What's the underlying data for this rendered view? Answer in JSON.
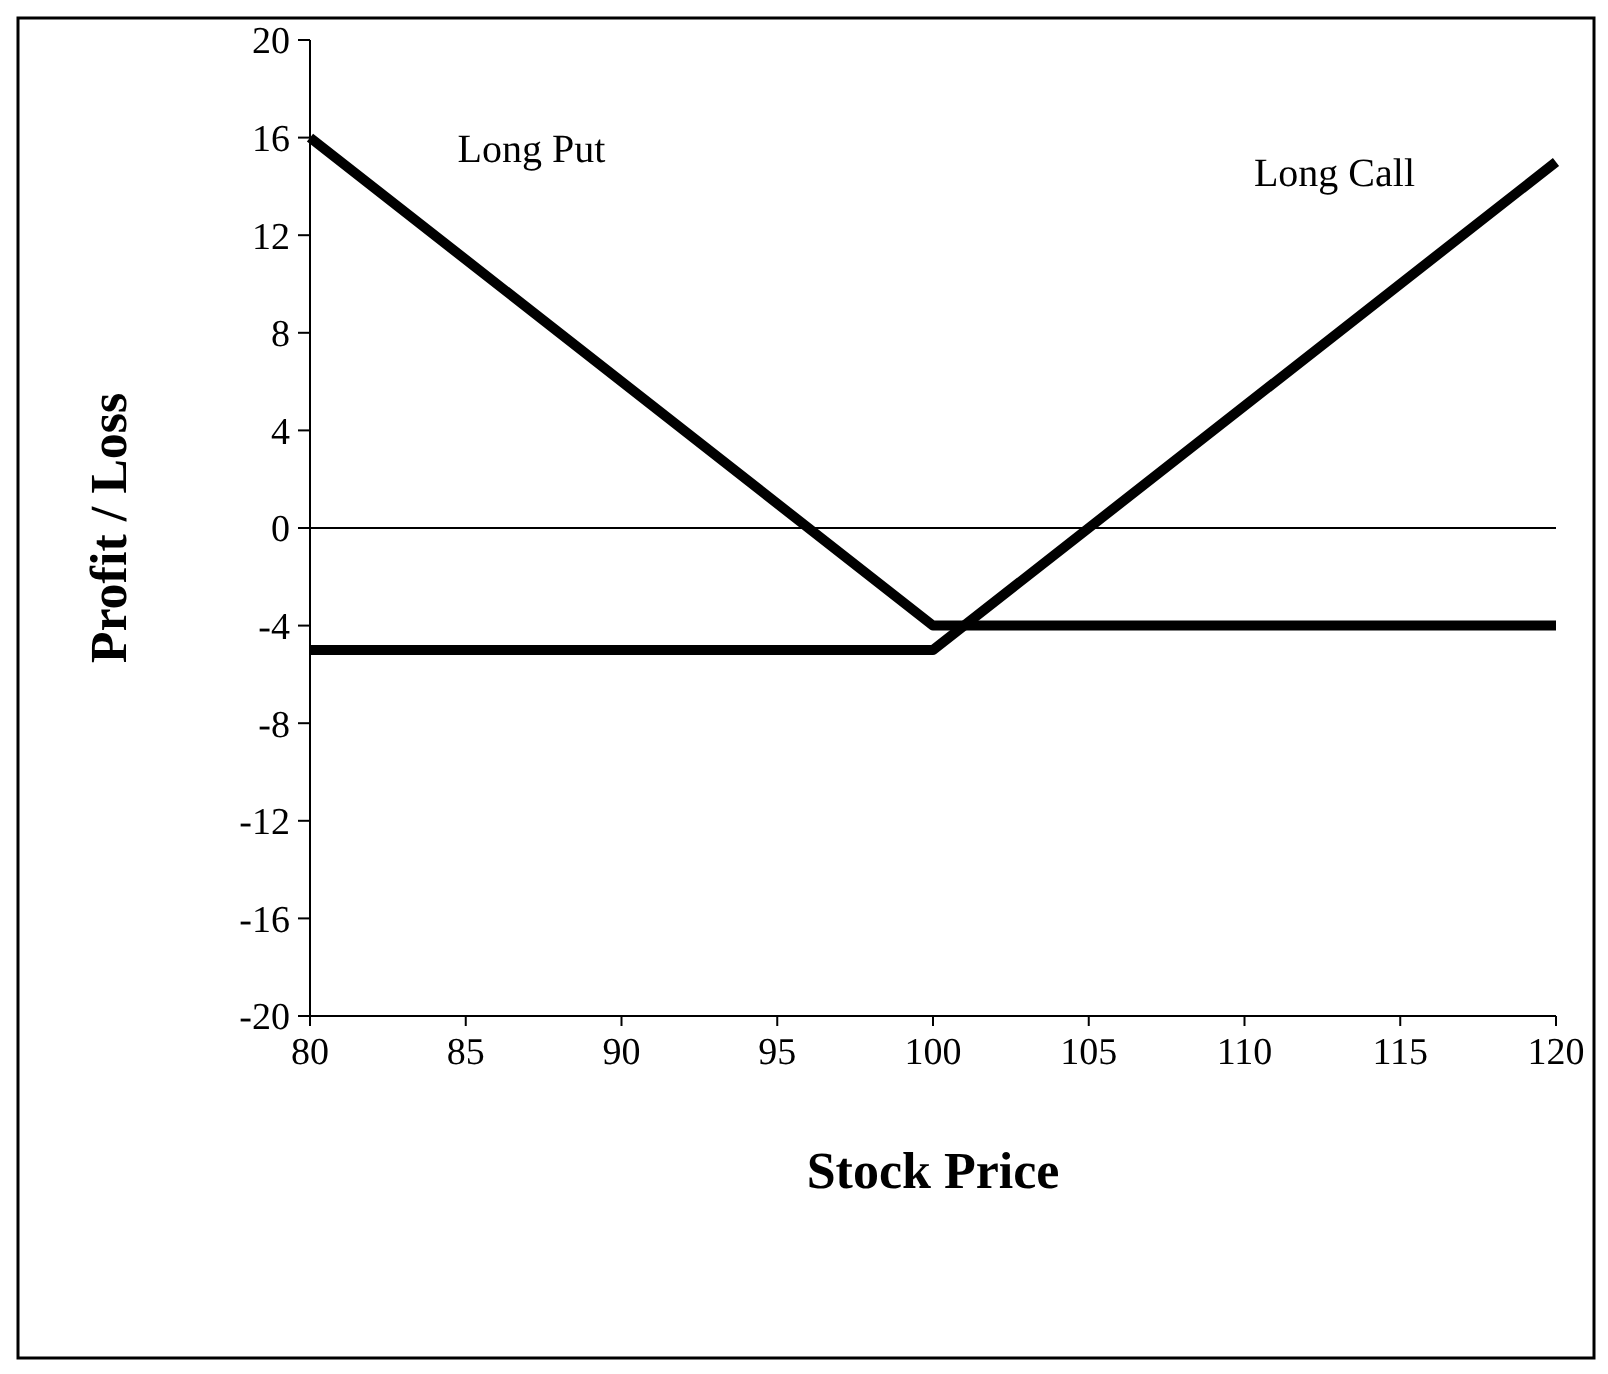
{
  "chart_data": {
    "type": "line",
    "xlabel": "Stock Price",
    "ylabel": "Profit / Loss",
    "xlim": [
      80,
      120
    ],
    "xticks": [
      80,
      85,
      90,
      95,
      100,
      105,
      110,
      115,
      120
    ],
    "ylim": [
      -20,
      20
    ],
    "yticks": [
      -20,
      -16,
      -12,
      -8,
      -4,
      0,
      4,
      8,
      12,
      16,
      20
    ],
    "series": [
      {
        "name": "Long Put",
        "color": "#000000",
        "x": [
          80,
          100,
          120
        ],
        "values": [
          16,
          -4,
          -4
        ]
      },
      {
        "name": "Long Call",
        "color": "#000000",
        "x": [
          80,
          100,
          120
        ],
        "values": [
          -5,
          -5,
          15
        ]
      }
    ],
    "ref_lines": [
      {
        "axis": "y",
        "value": 0,
        "color": "#000000"
      }
    ],
    "grid": false,
    "legend": false,
    "marker": "none",
    "line_style": "solid"
  }
}
